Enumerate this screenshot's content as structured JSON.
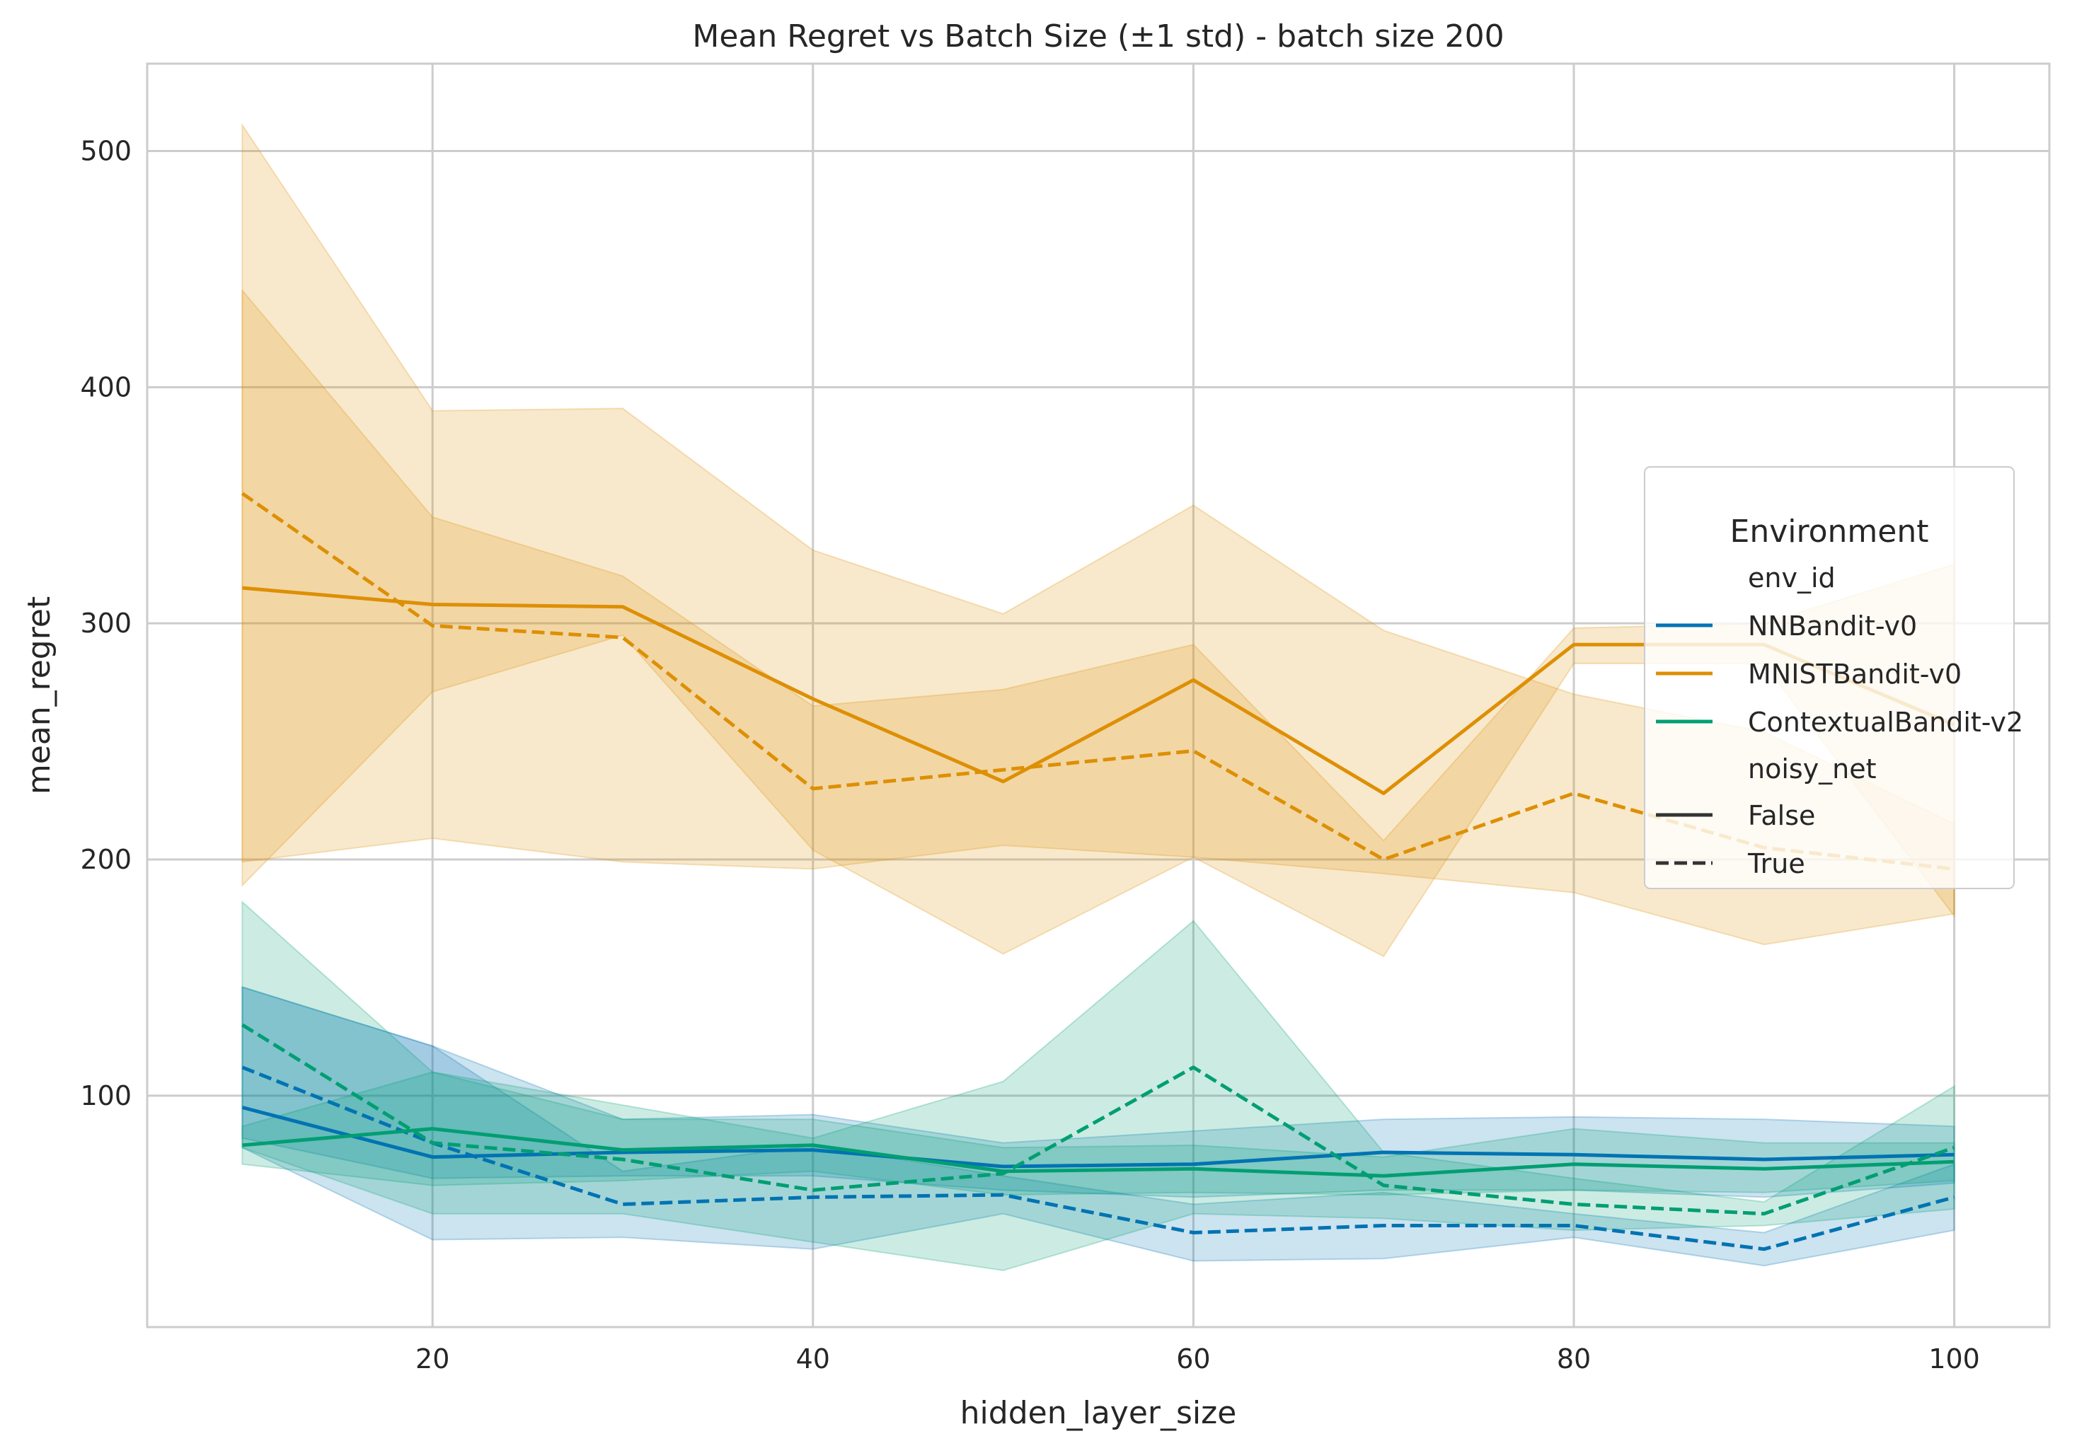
{
  "chart_data": {
    "type": "line",
    "title": "Mean Regret vs Batch Size (±1 std) - batch size 200",
    "xlabel": "hidden_layer_size",
    "ylabel": "mean_regret",
    "xlim": [
      5,
      105
    ],
    "ylim": [
      2,
      537
    ],
    "xticks": [
      20,
      40,
      60,
      80,
      100
    ],
    "yticks": [
      100,
      200,
      300,
      400,
      500
    ],
    "grid": true,
    "legend": {
      "placement": "center-right",
      "title": "Environment",
      "hue_title": "env_id",
      "style_title": "noisy_net",
      "style_entries": [
        {
          "label": "False",
          "dash": "solid"
        },
        {
          "label": "True",
          "dash": "dashed"
        }
      ]
    },
    "x": [
      10,
      20,
      30,
      40,
      50,
      60,
      70,
      80,
      90,
      100
    ],
    "series": [
      {
        "name": "NNBandit-v0",
        "noisy_net": "False",
        "color": "#0173b2",
        "dash": "solid",
        "values": [
          95,
          74,
          76,
          77,
          70,
          71,
          76,
          75,
          73,
          75
        ],
        "lower": [
          82,
          65,
          66,
          66,
          60,
          57,
          60,
          60,
          57,
          63
        ],
        "upper": [
          146,
          121,
          90,
          92,
          80,
          85,
          90,
          91,
          90,
          87
        ]
      },
      {
        "name": "NNBandit-v0",
        "noisy_net": "True",
        "color": "#0173b2",
        "dash": "dashed",
        "values": [
          112,
          80,
          54,
          57,
          58,
          42,
          45,
          45,
          35,
          57
        ],
        "lower": [
          78,
          39,
          40,
          35,
          50,
          30,
          31,
          40,
          28,
          43
        ],
        "upper": [
          146,
          121,
          68,
          79,
          66,
          54,
          59,
          50,
          42,
          71
        ]
      },
      {
        "name": "MNISTBandit-v0",
        "noisy_net": "False",
        "color": "#de8f05",
        "dash": "solid",
        "values": [
          315,
          308,
          307,
          268,
          233,
          276,
          228,
          291,
          291,
          257
        ],
        "lower": [
          189,
          271,
          295,
          204,
          160,
          201,
          159,
          283,
          283,
          176
        ],
        "upper": [
          441,
          345,
          320,
          265,
          272,
          291,
          208,
          298,
          300,
          325
        ]
      },
      {
        "name": "MNISTBandit-v0",
        "noisy_net": "True",
        "color": "#de8f05",
        "dash": "dashed",
        "values": [
          355,
          299,
          294,
          230,
          238,
          246,
          200,
          228,
          205,
          196
        ],
        "lower": [
          199,
          209,
          199,
          196,
          206,
          201,
          194,
          186,
          164,
          177
        ],
        "upper": [
          511,
          390,
          391,
          331,
          304,
          350,
          297,
          270,
          254,
          215
        ]
      },
      {
        "name": "ContextualBandit-v2",
        "noisy_net": "False",
        "color": "#029e73",
        "dash": "solid",
        "values": [
          79,
          86,
          77,
          79,
          68,
          69,
          66,
          71,
          69,
          72
        ],
        "lower": [
          71,
          62,
          64,
          68,
          58,
          59,
          58,
          60,
          59,
          64
        ],
        "upper": [
          87,
          110,
          90,
          90,
          78,
          79,
          74,
          86,
          80,
          80
        ]
      },
      {
        "name": "ContextualBandit-v2",
        "noisy_net": "True",
        "color": "#029e73",
        "dash": "dashed",
        "values": [
          130,
          80,
          73,
          60,
          67,
          112,
          62,
          54,
          50,
          78
        ],
        "lower": [
          78,
          50,
          50,
          38,
          26,
          50,
          48,
          43,
          45,
          52
        ],
        "upper": [
          182,
          110,
          96,
          82,
          106,
          174,
          76,
          65,
          55,
          104
        ]
      }
    ]
  }
}
